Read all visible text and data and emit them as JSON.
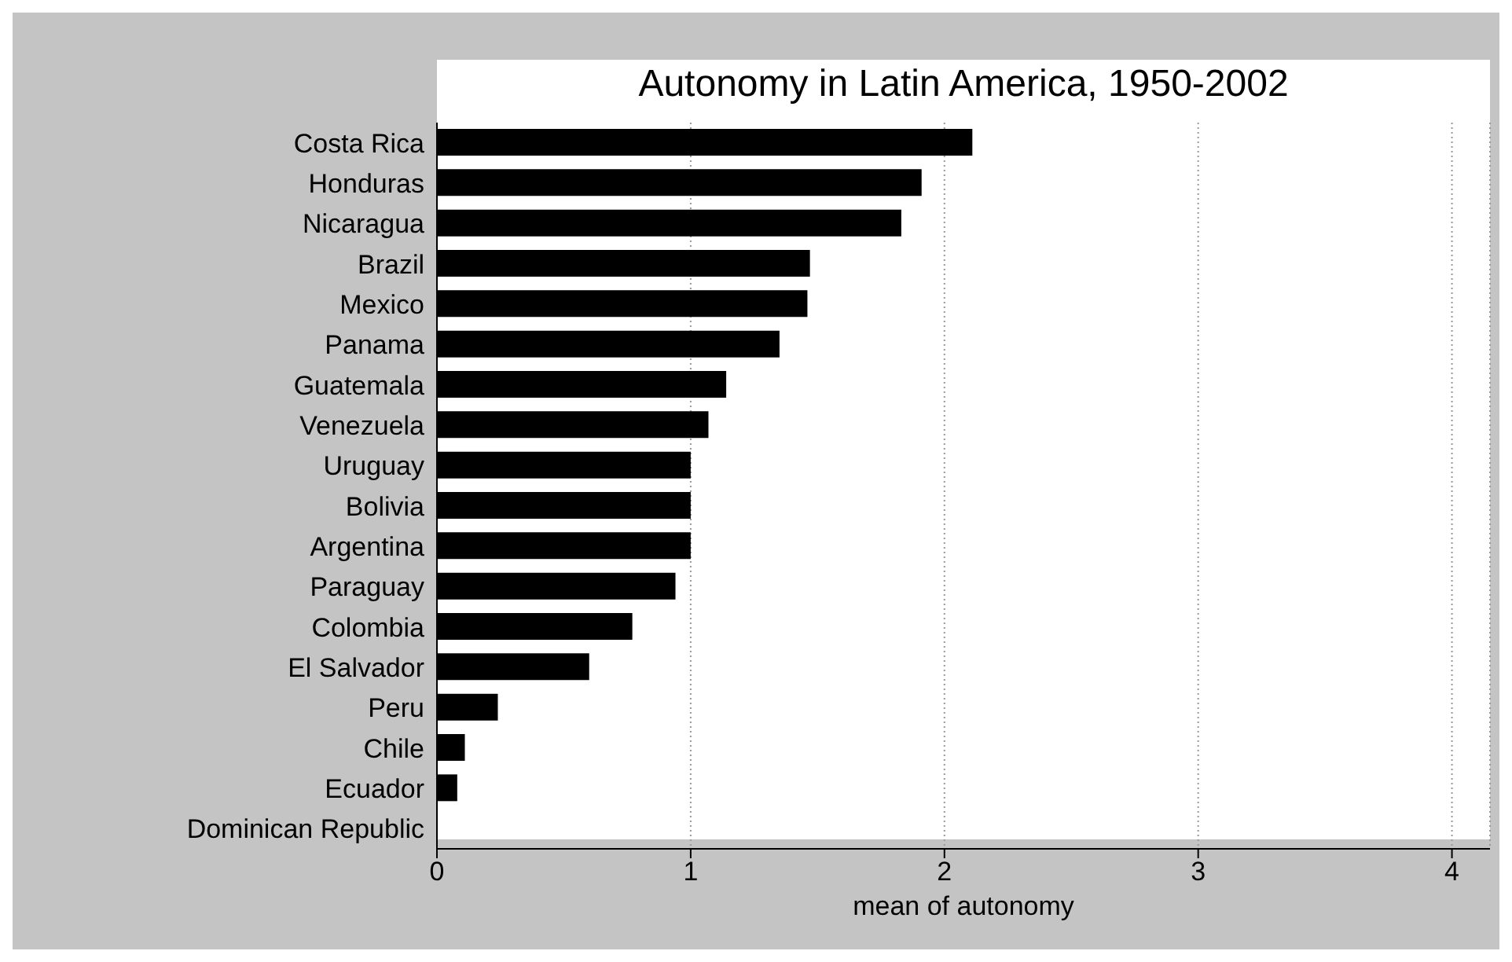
{
  "chart_data": {
    "type": "bar",
    "orientation": "horizontal",
    "title": "Autonomy in Latin America, 1950-2002",
    "xlabel": "mean of autonomy",
    "categories": [
      "Costa Rica",
      "Honduras",
      "Nicaragua",
      "Brazil",
      "Mexico",
      "Panama",
      "Guatemala",
      "Venezuela",
      "Uruguay",
      "Bolivia",
      "Argentina",
      "Paraguay",
      "Colombia",
      "El Salvador",
      "Peru",
      "Chile",
      "Ecuador",
      "Dominican Republic"
    ],
    "values": [
      2.11,
      1.91,
      1.83,
      1.47,
      1.46,
      1.35,
      1.14,
      1.07,
      1.0,
      1.0,
      1.0,
      0.94,
      0.77,
      0.6,
      0.24,
      0.11,
      0.08,
      0
    ],
    "color": "#000000",
    "xlim": [
      0,
      4.15
    ],
    "xticks": [
      0,
      1,
      2,
      3,
      4
    ],
    "grid": "x",
    "legend": false
  }
}
